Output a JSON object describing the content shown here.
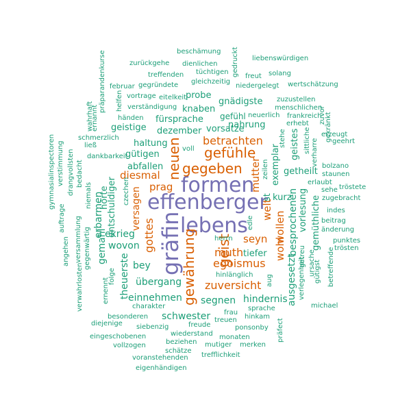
{
  "colors": {
    "green": "#1b9e77",
    "orange": "#d95f02",
    "purple": "#7570b3",
    "background": "#ffffff"
  },
  "words": {
    "effenberger": "effenberger",
    "formen": "formen",
    "lebens": "lebens",
    "graefin": "gräfin",
    "gewaehrung": "gewährung",
    "geist": "geist",
    "gegeben": "gegeben",
    "gefuehle": "gefühle",
    "neuen": "neuen",
    "betrachten": "betrachten",
    "muth": "muth",
    "egoismus": "egoismus",
    "zuversicht": "zuversicht",
    "gottes": "gottes",
    "versagen": "versagen",
    "diesmal": "diesmal",
    "prag": "prag",
    "mutter": "mutter",
    "welt": "welt",
    "wohl": "wohl",
    "wollen": "wollen",
    "seyn": "seyn",
    "ausgesetzt": "ausgesetzt",
    "besprochenen": "besprochenen",
    "hindernis": "hindernis",
    "segnen": "segnen",
    "schwester": "schwester",
    "einnehmen": "einnehmen",
    "uebergang": "übergang",
    "bey": "bey",
    "wovon": "wovon",
    "ekrieg": "ekrieg",
    "gemahl": "gemahl",
    "erbarmen": "erbarmen",
    "hoerte": "hörte",
    "entschuldiger": "entschuldiger",
    "abfallen": "abfallen",
    "guetigen": "gütigen",
    "haltung": "haltung",
    "geistige": "geistige",
    "fuersprache": "fürsprache",
    "dezember": "dezember",
    "knaben": "knaben",
    "probe": "probe",
    "gnaedigste": "gnädigste",
    "gefuehl": "gefühl",
    "nahrung": "nahrung",
    "vorsatze": "vorsatze",
    "exemplar": "exemplar",
    "geistes": "geistes",
    "getheilt": "getheilt",
    "kurz": "kurz",
    "vorlesung": "vorlesung",
    "gemuethliche": "gemüthliche",
    "tiefer": "tiefer",
    "herrn": "herrn",
    "theuerste": "theuerste",
    "st": "st",
    "edle": "edle",
    "zeilen": "zeilen",
    "voll": "voll",
    "beschaemung": "beschämung",
    "liebenswuerdigen": "liebenswürdigen",
    "zurueckgehe": "zurückgehe",
    "dienlichen": "dienlichen",
    "gedruckt": "gedruckt",
    "treffenden": "treffenden",
    "tuechtigen": "tüchtigen",
    "freut": "freut",
    "solang": "solang",
    "gleichzeitig": "gleichzeitig",
    "februar": "februar",
    "gegruendete": "gegründete",
    "niedergelegt": "niedergelegt",
    "wertschaetzung": "wertschätzung",
    "vortrage": "vortrage",
    "eitelkeit": "eitelkeit",
    "zuzustellen": "zuzustellen",
    "verstaendigung": "verständigung",
    "menschlichen": "menschlichen",
    "neuerlich": "neuerlich",
    "frankreich": "frankreich",
    "haenden": "händen",
    "erhebt": "erhebt",
    "zuvor": "zuvor",
    "erzeugt": "erzeugt",
    "gekraenkt": "gekränkt",
    "geehrt": "geehrt",
    "sittliche": "sittliche",
    "stehe": "stehe",
    "verharre": "verharre",
    "schmerzlich": "schmerzlich",
    "liess": "ließ",
    "dankbarkeit": "dankbarkeit",
    "bolzano": "bolzano",
    "staunen": "staunen",
    "erlaubt": "erlaubt",
    "troestete": "tröstete",
    "sehe": "sehe",
    "zugebracht": "zugebracht",
    "indes": "indes",
    "beitrag": "beitrag",
    "aenderung": "änderung",
    "punktes": "punktes",
    "troesten": "trösten",
    "ursache": "ursache",
    "guetigst": "gütigst",
    "betreffende": "betreffende",
    "verlegenheit": "verlegenheit",
    "getreu": "getreu",
    "michael": "michael",
    "praefect": "präfect",
    "hinklaenglich": "hinlänglich",
    "aug": "aug",
    "sprache": "sprache",
    "frau": "frau",
    "hinkam": "hinkam",
    "treuen": "treuen",
    "ponsonby": "ponsonby",
    "charakter": "charakter",
    "besonderen": "besonderen",
    "siebenzig": "siebenzig",
    "freude": "freude",
    "diejenige": "diejenige",
    "wiederstand": "wiederstand",
    "monaten": "monaten",
    "eingeschobenen": "eingeschobenen",
    "beziehen": "beziehen",
    "mutiger": "mutiger",
    "merken": "merken",
    "vollzogen": "vollzogen",
    "schaetze": "schätze",
    "voranstehenden": "voranstehenden",
    "trefflichkeit": "trefflichkeit",
    "eigenhaendigen": "eigenhändigen",
    "gymnasialinspectoren": "gymnasialinspectoren",
    "verstimmung": "verstimmung",
    "auftrage": "auftrage",
    "drangvollsten": "drangvollsten",
    "angehen": "angehen",
    "verwahrlosten": "verwahrlosten",
    "versammlung": "versammlung",
    "gegenwaertig": "gegenwärtig",
    "wahrhaft": "wahrhaft",
    "ernannt": "ernannt",
    "praeparandenkurse": "präparandenkurse",
    "helfen": "helfen",
    "bedacht": "bedacht",
    "niemals": "niemals",
    "czechen": "czechen",
    "folge": "folge",
    "ernennt": "ernennt"
  }
}
